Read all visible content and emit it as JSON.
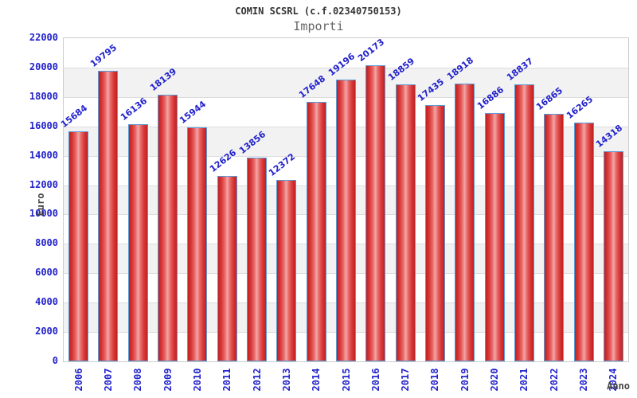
{
  "header": {
    "title": "COMIN SCSRL (c.f.02340750153)",
    "subtitle": "Importi"
  },
  "chart_data": {
    "type": "bar",
    "title": "COMIN SCSRL (c.f.02340750153)",
    "subtitle": "Importi",
    "xlabel": "Anno",
    "ylabel": "Euro",
    "categories": [
      "2006",
      "2007",
      "2008",
      "2009",
      "2010",
      "2011",
      "2012",
      "2013",
      "2014",
      "2015",
      "2016",
      "2017",
      "2018",
      "2019",
      "2020",
      "2021",
      "2022",
      "2023",
      "2024"
    ],
    "values": [
      15684,
      19795,
      16136,
      18139,
      15944,
      12626,
      13856,
      12372,
      17648,
      19196,
      20173,
      18859,
      17435,
      18918,
      16886,
      18837,
      16865,
      16265,
      14318
    ],
    "ylim": [
      0,
      22000
    ],
    "ytick_step": 2000,
    "grid": true,
    "legend": "none",
    "colors": {
      "bar_edge_dark": "#c02020",
      "bar_center_light": "#f4a6a6",
      "bar_border": "#5b9bd5",
      "tick_label": "#2222cc",
      "value_label": "#2222cc",
      "band_gray": "#f2f2f2",
      "gridline": "#dcdcdc",
      "plot_border": "#cccccc",
      "title_color": "#333333",
      "subtitle_color": "#666666",
      "axis_title_color": "#444444",
      "background": "#ffffff"
    }
  }
}
